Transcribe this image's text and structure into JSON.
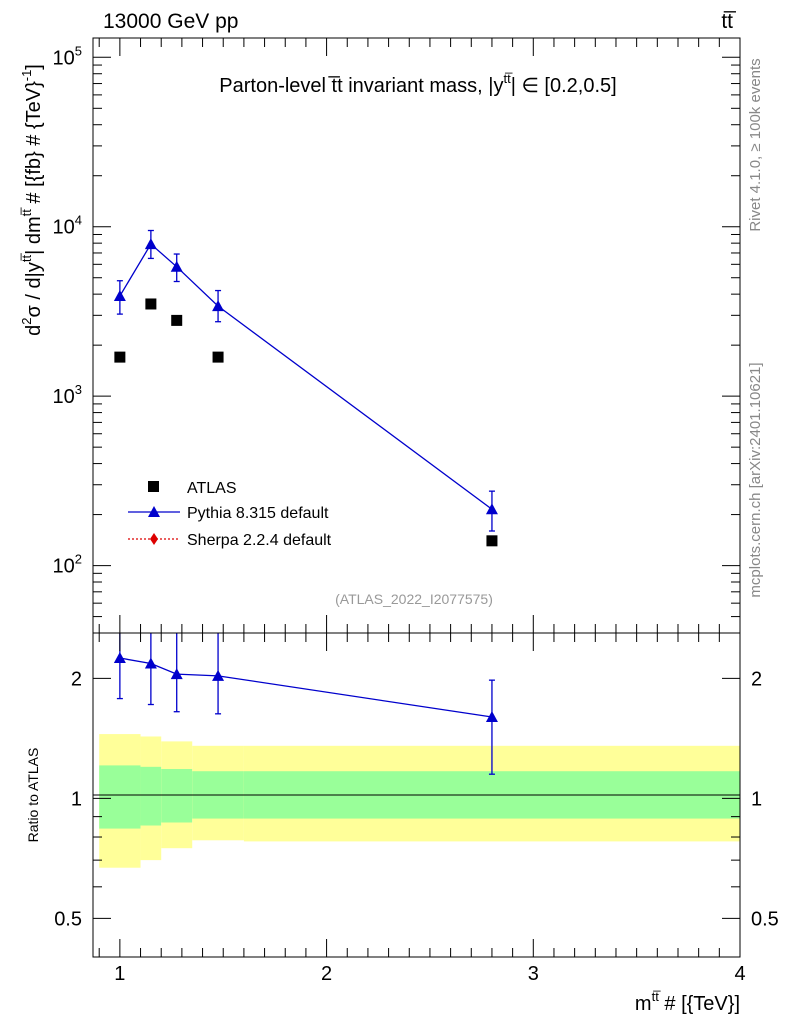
{
  "header": {
    "left": "13000 GeV pp",
    "right": "tt̅"
  },
  "side_labels": {
    "rivet": "Rivet 4.1.0, ≥ 100k events",
    "mcplots": "mcplots.cern.ch [arXiv:2401.10621]"
  },
  "chart_data": [
    {
      "type": "scatter",
      "panel": "main",
      "title": "Parton-level tt̅ invariant mass, |y^tt̅| ∈ [0.2,0.5]",
      "title_text": "Parton-level t̅t invariant mass, |y",
      "title_sup": "tt̅",
      "title_tail": "| ∈ [0.2,0.5]",
      "ylabel": "d²σ / d|y^tt̅| dm^tt̅ # [{fb} # {TeV}⁻¹]",
      "ylabel_parts": [
        "d",
        "2",
        "σ / d|y",
        "tt̅",
        "| dm",
        "tt̅",
        " # [{fb} # {TeV}",
        "-1",
        "]"
      ],
      "yscale": "log",
      "ylim": [
        40,
        130000
      ],
      "xlim": [
        0.87,
        4.0
      ],
      "yticks": [
        {
          "value": 100,
          "base": "10",
          "exp": "2"
        },
        {
          "value": 1000,
          "base": "10",
          "exp": "3"
        },
        {
          "value": 10000,
          "base": "10",
          "exp": "4"
        },
        {
          "value": 100000,
          "base": "10",
          "exp": "5"
        }
      ],
      "watermark": "(ATLAS_2022_I2077575)",
      "legend_position": "bottom-left",
      "series": [
        {
          "name": "ATLAS",
          "marker": "square",
          "color": "#000000",
          "x": [
            1.0,
            1.15,
            1.275,
            1.475,
            2.8
          ],
          "y": [
            1700,
            3500,
            2800,
            1700,
            140
          ]
        },
        {
          "name": "Pythia 8.315 default",
          "marker": "triangle",
          "color": "#0000cc",
          "line": "solid",
          "x": [
            1.0,
            1.15,
            1.275,
            1.475,
            2.8
          ],
          "y": [
            3900,
            7900,
            5800,
            3400,
            215
          ],
          "yerr_low": [
            3050,
            6500,
            4750,
            2750,
            160
          ],
          "yerr_high": [
            4800,
            9500,
            6900,
            4200,
            275
          ]
        },
        {
          "name": "Sherpa 2.2.4 default",
          "marker": "diamond",
          "color": "#dd0000",
          "line": "dotted",
          "x": [],
          "y": []
        }
      ]
    },
    {
      "type": "scatter",
      "panel": "ratio",
      "xlabel_text": "m",
      "xlabel_sup": "tt̅",
      "xlabel_tail": " # [{TeV}]",
      "ylabel": "Ratio to ATLAS",
      "yscale": "log",
      "ylim": [
        0.4,
        2.6
      ],
      "xlim": [
        0.87,
        4.0
      ],
      "yticks": [
        {
          "value": 0.5,
          "label": "0.5"
        },
        {
          "value": 1,
          "label": "1"
        },
        {
          "value": 2,
          "label": "2"
        }
      ],
      "xticks": [
        {
          "value": 1,
          "label": "1"
        },
        {
          "value": 2,
          "label": "2"
        },
        {
          "value": 3,
          "label": "3"
        },
        {
          "value": 4,
          "label": "4"
        }
      ],
      "bands": [
        {
          "x0": 0.9,
          "x1": 1.1,
          "inner": [
            0.84,
            1.21
          ],
          "outer": [
            0.67,
            1.45
          ]
        },
        {
          "x0": 1.1,
          "x1": 1.2,
          "inner": [
            0.855,
            1.2
          ],
          "outer": [
            0.7,
            1.43
          ]
        },
        {
          "x0": 1.2,
          "x1": 1.35,
          "inner": [
            0.87,
            1.185
          ],
          "outer": [
            0.75,
            1.39
          ]
        },
        {
          "x0": 1.35,
          "x1": 1.6,
          "inner": [
            0.89,
            1.17
          ],
          "outer": [
            0.785,
            1.355
          ]
        },
        {
          "x0": 1.6,
          "x1": 4.0,
          "inner": [
            0.89,
            1.17
          ],
          "outer": [
            0.78,
            1.355
          ]
        }
      ],
      "series": [
        {
          "name": "Pythia 8.315 default",
          "marker": "triangle",
          "color": "#0000cc",
          "x": [
            1.0,
            1.15,
            1.275,
            1.475,
            2.8
          ],
          "y": [
            2.25,
            2.18,
            2.05,
            2.03,
            1.6
          ],
          "yerr_low": [
            1.78,
            1.72,
            1.65,
            1.63,
            1.15
          ],
          "yerr_high": [
            2.65,
            2.65,
            2.65,
            2.65,
            1.98
          ]
        }
      ]
    }
  ]
}
